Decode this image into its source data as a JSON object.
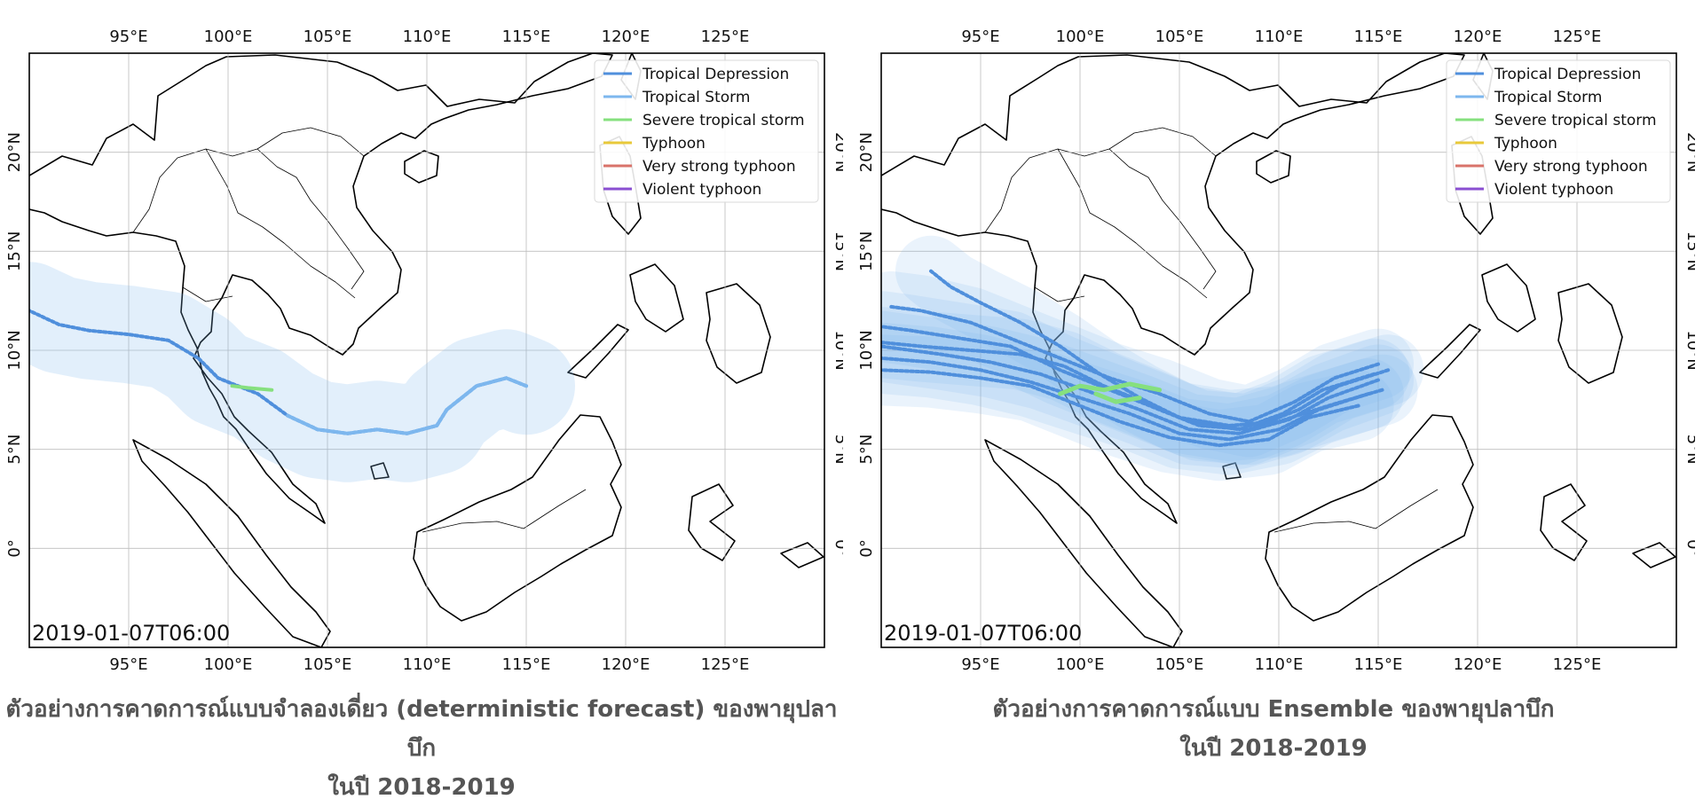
{
  "colors": {
    "tropical_depression": "#4f8fdc",
    "tropical_storm": "#7db7ee",
    "severe_tropical_storm": "#86e07e",
    "typhoon": "#e8c93a",
    "very_strong_typhoon": "#d9736a",
    "violent_typhoon": "#8a4fd1",
    "coast": "#000000",
    "grid": "#bdbdbd",
    "caption": "#555555"
  },
  "map_extent": {
    "lon": [
      90,
      130
    ],
    "lat": [
      -5,
      25
    ]
  },
  "grid_lon_labels": [
    "95°E",
    "100°E",
    "105°E",
    "110°E",
    "115°E",
    "120°E",
    "125°E"
  ],
  "grid_lat_labels": [
    "20°N",
    "15°N",
    "10°N",
    "5°N",
    "0°"
  ],
  "grid_lons": [
    95,
    100,
    105,
    110,
    115,
    120,
    125
  ],
  "grid_lats": [
    20,
    15,
    10,
    5,
    0
  ],
  "legend": [
    {
      "label": "Tropical Depression",
      "color": "#4f8fdc"
    },
    {
      "label": "Tropical Storm",
      "color": "#7db7ee"
    },
    {
      "label": "Severe tropical storm",
      "color": "#86e07e"
    },
    {
      "label": "Typhoon",
      "color": "#e8c93a"
    },
    {
      "label": "Very strong typhoon",
      "color": "#d9736a"
    },
    {
      "label": "Violent typhoon",
      "color": "#8a4fd1"
    }
  ],
  "panels": [
    {
      "id": "deterministic",
      "timestamp": "2019-01-07T06:00",
      "caption_line1": "ตัวอย่างการคาดการณ์แบบจำลองเดี่ยว (deterministic forecast) ของพายุปลาบึก",
      "caption_line2": "ในปี 2018-2019",
      "tracks": [
        [
          [
            115.0,
            8.2
          ],
          [
            114.0,
            8.6
          ],
          [
            112.5,
            8.2
          ],
          [
            111.0,
            7.0
          ],
          [
            110.5,
            6.2
          ],
          [
            109.0,
            5.8
          ],
          [
            107.5,
            6.0
          ],
          [
            106.0,
            5.8
          ],
          [
            104.5,
            6.0
          ],
          [
            103.0,
            6.7
          ],
          [
            101.5,
            7.8
          ],
          [
            100.5,
            8.2
          ],
          [
            99.5,
            8.6
          ],
          [
            98.5,
            9.6
          ],
          [
            97.0,
            10.5
          ],
          [
            95.0,
            10.8
          ],
          [
            93.0,
            11.0
          ],
          [
            91.5,
            11.3
          ],
          [
            90.0,
            12.0
          ]
        ]
      ]
    },
    {
      "id": "ensemble",
      "timestamp": "2019-01-07T06:00",
      "caption_line1": "ตัวอย่างการคาดการณ์แบบ Ensemble ของพายุปลาบึก",
      "caption_line2": "ในปี 2018-2019",
      "tracks": [
        [
          [
            115.5,
            9.0
          ],
          [
            113.0,
            8.2
          ],
          [
            111.0,
            7.0
          ],
          [
            108.5,
            6.0
          ],
          [
            106.0,
            6.2
          ],
          [
            103.5,
            7.2
          ],
          [
            101.0,
            8.2
          ],
          [
            99.0,
            9.0
          ],
          [
            96.5,
            10.2
          ],
          [
            94.0,
            10.6
          ],
          [
            91.5,
            11.0
          ],
          [
            90.0,
            11.2
          ]
        ],
        [
          [
            115.0,
            8.5
          ],
          [
            112.5,
            7.6
          ],
          [
            110.5,
            6.5
          ],
          [
            108.0,
            5.8
          ],
          [
            105.5,
            6.0
          ],
          [
            103.0,
            7.0
          ],
          [
            100.5,
            7.9
          ],
          [
            98.0,
            8.8
          ],
          [
            95.5,
            9.4
          ],
          [
            93.0,
            9.8
          ],
          [
            90.0,
            10.2
          ]
        ],
        [
          [
            114.5,
            7.8
          ],
          [
            112.0,
            7.0
          ],
          [
            110.0,
            6.0
          ],
          [
            107.5,
            5.5
          ],
          [
            105.0,
            5.8
          ],
          [
            102.5,
            6.8
          ],
          [
            100.0,
            7.6
          ],
          [
            97.5,
            8.4
          ],
          [
            95.0,
            9.0
          ],
          [
            92.5,
            9.4
          ],
          [
            90.0,
            9.6
          ]
        ],
        [
          [
            115.0,
            9.3
          ],
          [
            112.8,
            8.6
          ],
          [
            110.8,
            7.4
          ],
          [
            108.5,
            6.4
          ],
          [
            106.5,
            6.8
          ],
          [
            104.0,
            7.8
          ],
          [
            101.5,
            8.6
          ],
          [
            99.0,
            9.6
          ],
          [
            96.5,
            10.6
          ],
          [
            94.5,
            11.4
          ],
          [
            92.0,
            12.0
          ],
          [
            90.5,
            12.2
          ]
        ],
        [
          [
            114.0,
            7.2
          ],
          [
            111.5,
            6.6
          ],
          [
            109.5,
            5.5
          ],
          [
            107.0,
            5.2
          ],
          [
            104.5,
            5.6
          ],
          [
            102.0,
            6.4
          ],
          [
            99.5,
            7.4
          ],
          [
            97.5,
            8.2
          ],
          [
            95.0,
            8.6
          ],
          [
            92.5,
            8.9
          ],
          [
            90.0,
            9.0
          ]
        ],
        [
          [
            115.2,
            8.0
          ],
          [
            112.5,
            7.2
          ],
          [
            110.0,
            6.4
          ],
          [
            107.5,
            6.2
          ],
          [
            105.0,
            6.6
          ],
          [
            103.0,
            7.6
          ],
          [
            101.0,
            8.8
          ],
          [
            99.0,
            10.2
          ],
          [
            97.0,
            11.4
          ],
          [
            95.0,
            12.4
          ],
          [
            93.5,
            13.2
          ],
          [
            92.5,
            14.0
          ]
        ],
        [
          [
            114.8,
            8.8
          ],
          [
            112.2,
            8.0
          ],
          [
            110.2,
            6.8
          ],
          [
            108.0,
            6.0
          ],
          [
            105.5,
            6.4
          ],
          [
            103.2,
            7.4
          ],
          [
            101.2,
            8.2
          ],
          [
            99.2,
            9.2
          ],
          [
            97.0,
            9.8
          ],
          [
            94.5,
            10.0
          ],
          [
            92.0,
            10.2
          ],
          [
            90.0,
            10.4
          ]
        ]
      ],
      "severe_segments": [
        [
          [
            104.0,
            8.0
          ],
          [
            102.5,
            8.3
          ],
          [
            101.2,
            8.0
          ],
          [
            100.0,
            8.2
          ],
          [
            99.0,
            7.8
          ]
        ],
        [
          [
            103.0,
            7.6
          ],
          [
            101.8,
            7.4
          ],
          [
            100.8,
            7.8
          ]
        ]
      ]
    }
  ]
}
